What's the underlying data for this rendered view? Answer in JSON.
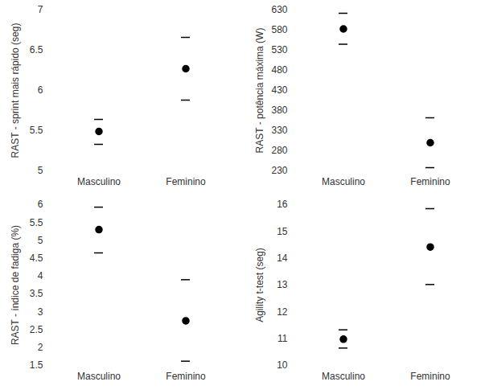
{
  "chart_data": [
    {
      "type": "scatter",
      "y_label": "RAST - sprint mais rápido (seg)",
      "categories": [
        "Masculino",
        "Feminino"
      ],
      "values": [
        5.49,
        6.27
      ],
      "error_upper": [
        5.64,
        6.66
      ],
      "error_lower": [
        5.33,
        5.88
      ],
      "ylim": [
        5,
        7
      ],
      "yticks": [
        5,
        5.5,
        6,
        6.5,
        7
      ],
      "color": "#000000",
      "marker": "circle"
    },
    {
      "type": "scatter",
      "y_label": "RAST - potência máxima (W)",
      "categories": [
        "Masculino",
        "Feminino"
      ],
      "values": [
        583,
        300
      ],
      "error_upper": [
        622,
        362
      ],
      "error_lower": [
        545,
        238
      ],
      "ylim": [
        230,
        630
      ],
      "yticks": [
        230,
        280,
        330,
        380,
        430,
        480,
        530,
        580,
        630
      ],
      "color": "#000000",
      "marker": "circle"
    },
    {
      "type": "scatter",
      "y_label": "RAST - índice de fadiga (%)",
      "categories": [
        "Masculino",
        "Feminino"
      ],
      "values": [
        5.3,
        2.75
      ],
      "error_upper": [
        5.93,
        3.9
      ],
      "error_lower": [
        4.65,
        1.62
      ],
      "ylim": [
        1.5,
        6
      ],
      "yticks": [
        1.5,
        2,
        2.5,
        3,
        3.5,
        4,
        4.5,
        5,
        5.5,
        6
      ],
      "color": "#000000",
      "marker": "circle"
    },
    {
      "type": "scatter",
      "y_label": "Agility t-test (seg)",
      "categories": [
        "Masculino",
        "Feminino"
      ],
      "values": [
        10.98,
        14.42
      ],
      "error_upper": [
        11.33,
        15.85
      ],
      "error_lower": [
        10.65,
        13.02
      ],
      "ylim": [
        10,
        16
      ],
      "yticks": [
        10,
        11,
        12,
        13,
        14,
        15,
        16
      ],
      "color": "#000000",
      "marker": "circle"
    }
  ]
}
